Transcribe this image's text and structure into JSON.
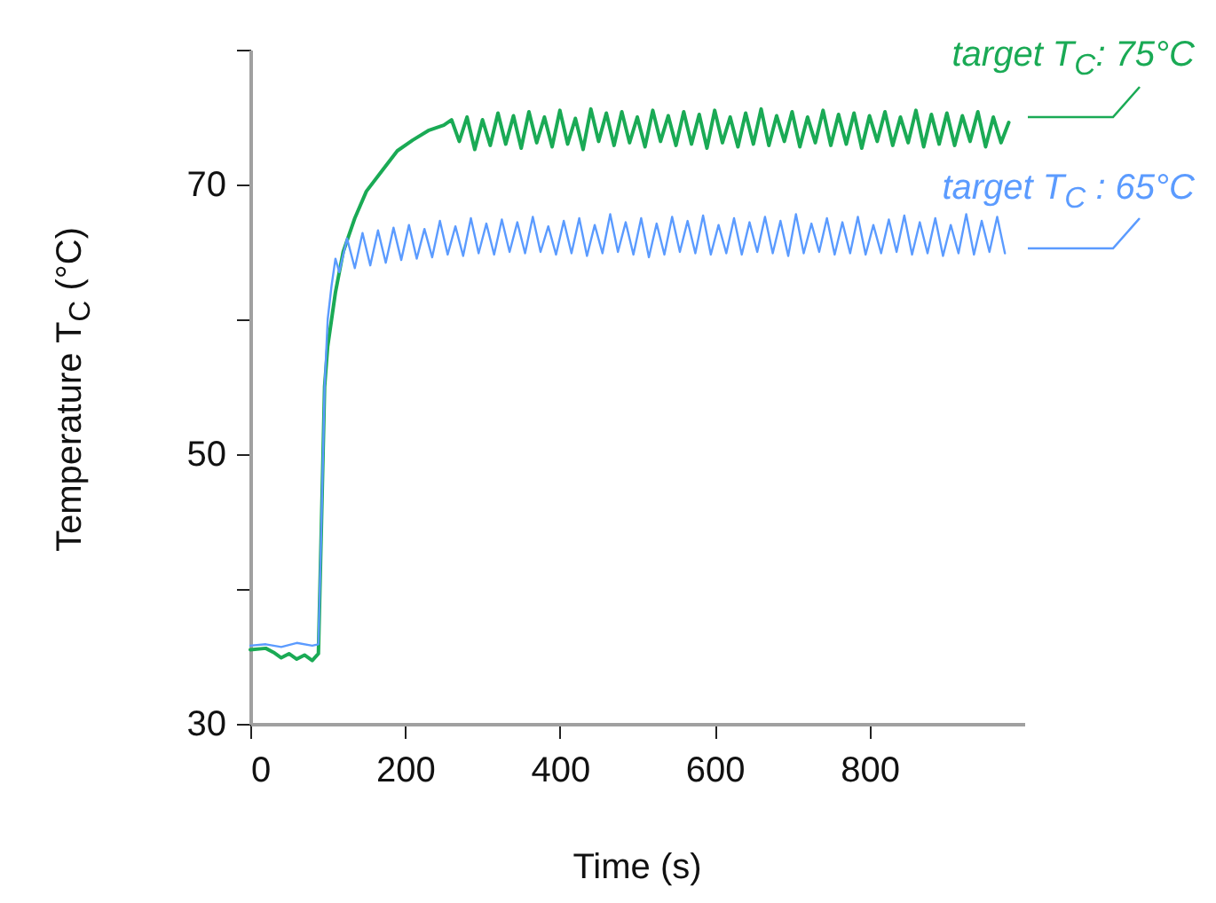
{
  "chart_data": {
    "type": "line",
    "xlabel": "Time (s)",
    "ylabel": "Temperature T$_{C}$ (°C)",
    "xlim": [
      0,
      1000
    ],
    "xticks": [
      0,
      200,
      400,
      600,
      800
    ],
    "ylim": [
      30,
      80
    ],
    "yticks": [
      30,
      {
        "value": 40,
        "label": null
      },
      50,
      {
        "value": 60,
        "label": null
      },
      70,
      {
        "value": 80,
        "label": null
      }
    ],
    "grid": false,
    "series": [
      {
        "name": "target T$_{C}$: 75°C",
        "color": "#1aaa55",
        "x": [
          0,
          20,
          30,
          40,
          50,
          60,
          70,
          80,
          88,
          92,
          96,
          100,
          110,
          120,
          135,
          150,
          170,
          190,
          210,
          230,
          250,
          260,
          270,
          280,
          290,
          300,
          310,
          320,
          330,
          340,
          350,
          360,
          370,
          380,
          390,
          400,
          410,
          420,
          430,
          440,
          450,
          460,
          470,
          480,
          490,
          500,
          510,
          520,
          530,
          540,
          550,
          560,
          570,
          580,
          590,
          600,
          610,
          620,
          630,
          640,
          650,
          660,
          670,
          680,
          690,
          700,
          710,
          720,
          730,
          740,
          750,
          760,
          770,
          780,
          790,
          800,
          810,
          820,
          830,
          840,
          850,
          860,
          870,
          880,
          890,
          900,
          910,
          920,
          930,
          940,
          950,
          960,
          970,
          980
        ],
        "values": [
          35.5,
          35.6,
          35.3,
          34.9,
          35.2,
          34.8,
          35.1,
          34.7,
          35.2,
          45,
          55,
          58,
          62,
          65,
          67.5,
          69.5,
          71,
          72.5,
          73.3,
          74,
          74.4,
          74.8,
          73.2,
          75.0,
          72.6,
          74.8,
          72.9,
          75.3,
          73.0,
          75.1,
          72.7,
          75.4,
          73.1,
          75.0,
          72.8,
          75.5,
          73.0,
          74.9,
          72.6,
          75.6,
          73.2,
          75.3,
          72.9,
          75.4,
          73.1,
          75.0,
          72.8,
          75.5,
          73.2,
          75.1,
          72.9,
          75.4,
          73.0,
          75.2,
          72.7,
          75.5,
          73.1,
          75.0,
          72.8,
          75.3,
          73.0,
          75.6,
          72.9,
          75.1,
          73.2,
          75.4,
          72.8,
          75.0,
          73.1,
          75.5,
          72.9,
          75.2,
          73.0,
          75.3,
          72.7,
          75.1,
          73.2,
          75.4,
          72.9,
          75.0,
          73.1,
          75.5,
          72.8,
          75.2,
          73.0,
          75.3,
          72.9,
          75.1,
          73.2,
          75.4,
          72.8,
          75.0,
          73.1,
          74.6
        ]
      },
      {
        "name": "target T$_{C}$ : 65°C",
        "color": "#5b9bff",
        "x": [
          0,
          20,
          40,
          60,
          80,
          88,
          92,
          96,
          100,
          105,
          110,
          115,
          125,
          135,
          145,
          155,
          165,
          175,
          185,
          195,
          205,
          215,
          225,
          235,
          245,
          255,
          265,
          275,
          285,
          295,
          305,
          315,
          325,
          335,
          345,
          355,
          365,
          375,
          385,
          395,
          405,
          415,
          425,
          435,
          445,
          455,
          465,
          475,
          485,
          495,
          505,
          515,
          525,
          535,
          545,
          555,
          565,
          575,
          585,
          595,
          605,
          615,
          625,
          635,
          645,
          655,
          665,
          675,
          685,
          695,
          705,
          715,
          725,
          735,
          745,
          755,
          765,
          775,
          785,
          795,
          805,
          815,
          825,
          835,
          845,
          855,
          865,
          875,
          885,
          895,
          905,
          915,
          925,
          935,
          945,
          955,
          965,
          975
        ],
        "values": [
          35.8,
          35.9,
          35.7,
          36.0,
          35.8,
          35.9,
          45,
          55,
          60,
          62.5,
          64.5,
          63.5,
          66.0,
          63.8,
          66.4,
          64.0,
          66.6,
          64.2,
          66.8,
          64.4,
          67.0,
          64.5,
          66.7,
          64.6,
          67.3,
          64.8,
          66.9,
          64.7,
          67.5,
          64.9,
          67.1,
          64.8,
          67.4,
          65.0,
          67.2,
          64.9,
          67.6,
          65.0,
          66.9,
          64.8,
          67.3,
          64.9,
          67.5,
          64.7,
          67.0,
          64.9,
          67.8,
          65.0,
          67.2,
          64.8,
          67.5,
          64.6,
          67.1,
          64.8,
          67.6,
          65.0,
          67.3,
          64.9,
          67.7,
          64.8,
          67.0,
          64.9,
          67.5,
          64.8,
          67.2,
          65.0,
          67.6,
          64.9,
          67.3,
          64.7,
          67.8,
          64.9,
          67.1,
          65.0,
          67.5,
          64.8,
          67.2,
          64.9,
          67.6,
          64.8,
          67.0,
          64.9,
          67.4,
          65.0,
          67.7,
          64.8,
          67.2,
          64.9,
          67.5,
          64.7,
          67.0,
          64.9,
          67.8,
          64.8,
          67.3,
          65.0,
          67.6,
          64.9
        ]
      }
    ]
  }
}
